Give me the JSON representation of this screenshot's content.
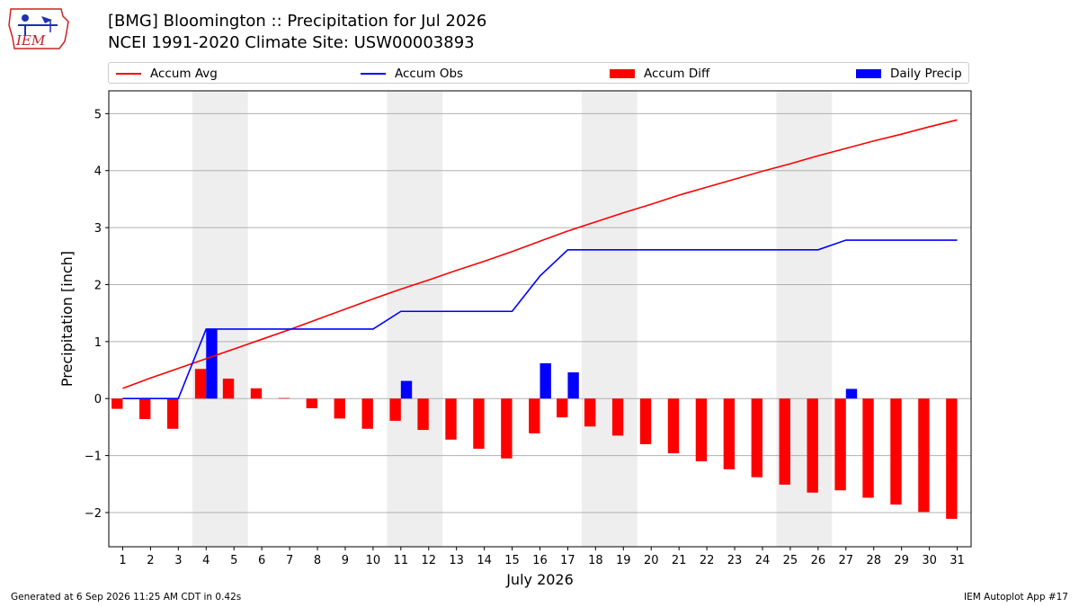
{
  "header": {
    "title_line1": "[BMG] Bloomington :: Precipitation for Jul 2026",
    "title_line2": "NCEI 1991-2020 Climate Site: USW00003893"
  },
  "logo": {
    "text": "IEM",
    "icon": "iem-iowa-logo"
  },
  "legend": {
    "placement": "top",
    "items": [
      {
        "label": "Accum Avg",
        "kind": "line",
        "color": "#ff0000"
      },
      {
        "label": "Accum Obs",
        "kind": "line",
        "color": "#0000ff"
      },
      {
        "label": "Accum Diff",
        "kind": "bar",
        "color": "#ff0000"
      },
      {
        "label": "Daily Precip",
        "kind": "bar",
        "color": "#0000ff"
      }
    ]
  },
  "footer": {
    "left": "Generated at 6 Sep 2026 11:25 AM CDT in 0.42s",
    "right": "IEM Autoplot App #17"
  },
  "chart_data": {
    "type": "line",
    "xlabel": "July 2026",
    "ylabel": "Precipitation [inch]",
    "x": [
      1,
      2,
      3,
      4,
      5,
      6,
      7,
      8,
      9,
      10,
      11,
      12,
      13,
      14,
      15,
      16,
      17,
      18,
      19,
      20,
      21,
      22,
      23,
      24,
      25,
      26,
      27,
      28,
      29,
      30,
      31
    ],
    "xlim": [
      0.5,
      31.5
    ],
    "ylim": [
      -2.6,
      5.4
    ],
    "yticks": [
      5,
      4,
      3,
      2,
      1,
      0,
      -1,
      -2
    ],
    "ytick_labels": [
      "5",
      "4",
      "3",
      "2",
      "1",
      "0",
      "−1",
      "−2"
    ],
    "grid": "horizontal",
    "weekend_shading": [
      [
        3.5,
        5.5
      ],
      [
        10.5,
        12.5
      ],
      [
        17.5,
        19.5
      ],
      [
        24.5,
        26.5
      ]
    ],
    "series": [
      {
        "name": "Accum Avg",
        "kind": "line",
        "color": "#ff0000",
        "values": [
          0.18,
          0.36,
          0.53,
          0.7,
          0.87,
          1.04,
          1.21,
          1.39,
          1.57,
          1.75,
          1.92,
          2.08,
          2.25,
          2.41,
          2.58,
          2.76,
          2.94,
          3.1,
          3.26,
          3.41,
          3.57,
          3.71,
          3.85,
          3.99,
          4.12,
          4.26,
          4.39,
          4.52,
          4.64,
          4.77,
          4.89
        ]
      },
      {
        "name": "Accum Obs",
        "kind": "line",
        "color": "#0000ff",
        "values": [
          0.0,
          0.0,
          0.0,
          1.22,
          1.22,
          1.22,
          1.22,
          1.22,
          1.22,
          1.22,
          1.53,
          1.53,
          1.53,
          1.53,
          1.53,
          2.15,
          2.61,
          2.61,
          2.61,
          2.61,
          2.61,
          2.61,
          2.61,
          2.61,
          2.61,
          2.61,
          2.78,
          2.78,
          2.78,
          2.78,
          2.78
        ]
      },
      {
        "name": "Accum Diff",
        "kind": "bar",
        "color": "#ff0000",
        "offset": -0.2,
        "values": [
          -0.18,
          -0.36,
          -0.53,
          0.52,
          0.35,
          0.18,
          0.01,
          -0.17,
          -0.35,
          -0.53,
          -0.39,
          -0.55,
          -0.72,
          -0.88,
          -1.05,
          -0.61,
          -0.33,
          -0.49,
          -0.65,
          -0.8,
          -0.96,
          -1.1,
          -1.24,
          -1.38,
          -1.51,
          -1.65,
          -1.61,
          -1.74,
          -1.86,
          -1.99,
          -2.11
        ]
      },
      {
        "name": "Daily Precip",
        "kind": "bar",
        "color": "#0000ff",
        "offset": 0.2,
        "values": [
          0,
          0,
          0,
          1.22,
          0,
          0,
          0,
          0,
          0,
          0,
          0.31,
          0,
          0,
          0,
          0,
          0.62,
          0.46,
          0,
          0,
          0,
          0,
          0,
          0,
          0,
          0,
          0,
          0.17,
          0,
          0,
          0,
          0
        ]
      }
    ]
  }
}
